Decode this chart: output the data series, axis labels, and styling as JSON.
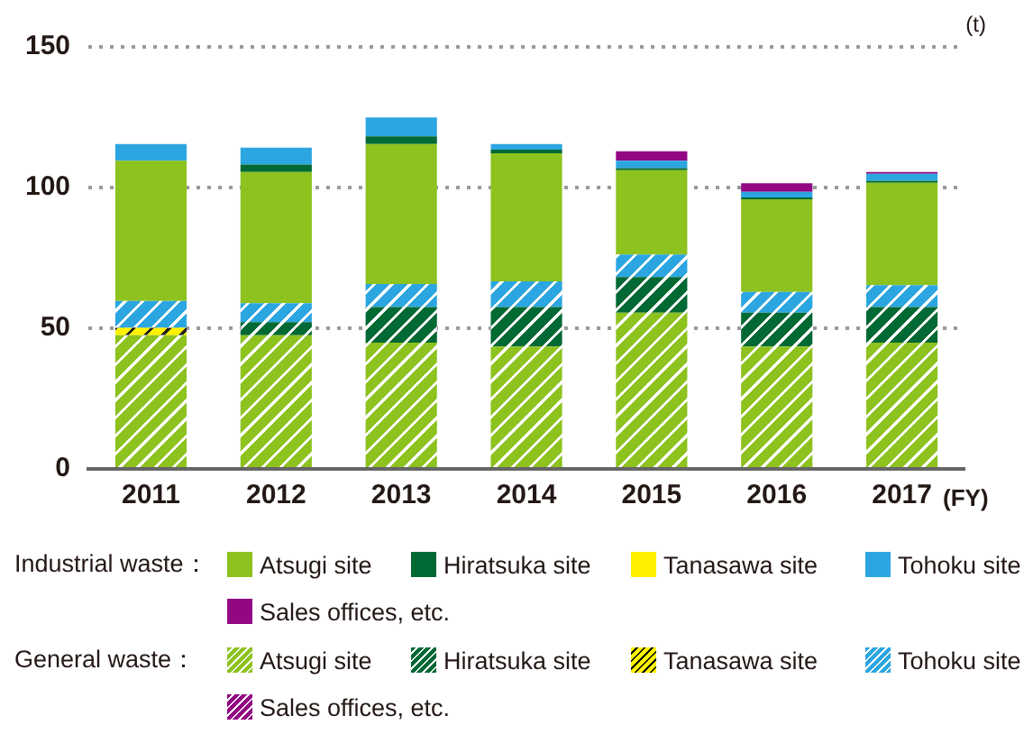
{
  "chart_data": {
    "type": "bar",
    "stacked": true,
    "ylabel": "(t)",
    "xlabel": "(FY)",
    "categories": [
      "2011",
      "2012",
      "2013",
      "2014",
      "2015",
      "2016",
      "2017"
    ],
    "ylim": [
      0,
      150
    ],
    "yticks": [
      0,
      50,
      100,
      150
    ],
    "grid": "y",
    "legend": "bottom",
    "annotations": [
      "Industrial waste：",
      "General waste："
    ],
    "series": [
      {
        "name": "Atsugi site",
        "color": "#8dc21f",
        "values": [
          47.5,
          47.5,
          44.9,
          43.5,
          55.5,
          43.5,
          44.9
        ]
      },
      {
        "name": "Hiratsuka site",
        "color": "#006934",
        "values": [
          0,
          4.7,
          12.6,
          14,
          12.7,
          12,
          12.6
        ]
      },
      {
        "name": "Tanasawa site",
        "color": "#fff100",
        "values": [
          2.7,
          0,
          0,
          0,
          0,
          0,
          0
        ]
      },
      {
        "name": "Tohoku site",
        "color": "#2ca6e0",
        "values": [
          9.5,
          6.7,
          8.2,
          9.2,
          8,
          7.4,
          7.8
        ]
      },
      {
        "name": "Sales offices, etc.",
        "color": "#920783",
        "values": [
          0,
          0,
          0,
          0,
          0,
          0,
          0
        ]
      },
      {
        "name": "Atsugi site",
        "color": "#8dc21f",
        "values": [
          49.8,
          46.6,
          49.8,
          45.5,
          30,
          32.9,
          36.4
        ]
      },
      {
        "name": "Hiratsuka site",
        "color": "#006934",
        "values": [
          0,
          2.7,
          2.7,
          1.3,
          0.7,
          0.7,
          0.7
        ]
      },
      {
        "name": "Tanasawa site",
        "color": "#fff100",
        "values": [
          0,
          0,
          0,
          0,
          0,
          0,
          0
        ]
      },
      {
        "name": "Tohoku site",
        "color": "#2ca6e0",
        "values": [
          6,
          6,
          6.7,
          2,
          2.6,
          2,
          2.5
        ]
      },
      {
        "name": "Sales offices, etc.",
        "color": "#920783",
        "values": [
          0,
          0,
          0,
          0,
          3.4,
          3,
          0.6
        ]
      }
    ]
  }
}
